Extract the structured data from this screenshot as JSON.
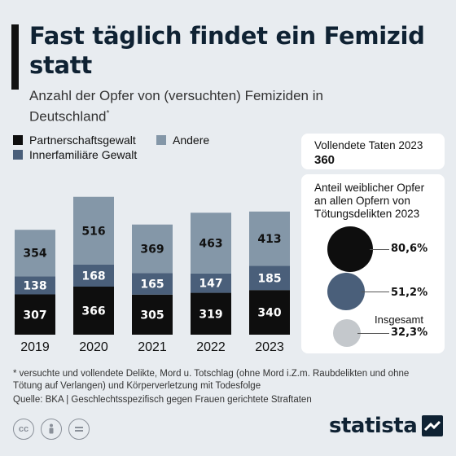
{
  "title": "Fast täglich findet ein Femizid statt",
  "subtitle": "Anzahl der Opfer von (versuchten) Femiziden in Deutschland",
  "subtitle_mark": "*",
  "colors": {
    "partnerschaft": "#0e0e0e",
    "innerfamiliaer": "#4a5f7a",
    "andere": "#8497a8",
    "background": "#e8ecf0",
    "panel": "#ffffff",
    "dot_insgesamt": "#c4c8cc"
  },
  "chart_data": {
    "type": "bar",
    "stacked": true,
    "categories": [
      "2019",
      "2020",
      "2021",
      "2022",
      "2023"
    ],
    "series": [
      {
        "name": "Partnerschaftsgewalt",
        "values": [
          307,
          366,
          305,
          319,
          340
        ]
      },
      {
        "name": "Innerfamiliäre Gewalt",
        "values": [
          138,
          168,
          165,
          147,
          185
        ]
      },
      {
        "name": "Andere",
        "values": [
          354,
          516,
          369,
          463,
          413
        ]
      }
    ],
    "legend_position": "top-left",
    "grid": false
  },
  "legend": {
    "partnerschaft": "Partnerschaftsgewalt",
    "andere": "Andere",
    "innerfamiliaer": "Innerfamiliäre Gewalt"
  },
  "panel_vollendet": {
    "label": "Vollendete Taten 2023",
    "value": "360"
  },
  "panel_anteil": {
    "heading": "Anteil weiblicher Opfer an allen Opfern von Tötungsdelikten 2023",
    "items": [
      {
        "value": "80,6%",
        "share": 0.806
      },
      {
        "value": "51,2%",
        "share": 0.512
      },
      {
        "value": "32,3%",
        "share": 0.323
      }
    ],
    "insgesamt_label": "Insgesamt"
  },
  "footnote": "* versuchte und vollendete Delikte, Mord u. Totschlag (ohne Mord i.Z.m. Raubdelikten und ohne Tötung auf Verlangen) und Körperverletzung mit Todesfolge",
  "source": "Quelle: BKA | Geschlechtsspezifisch gegen Frauen gerichtete Straftaten",
  "logo": "statista",
  "icons": [
    "cc-icon",
    "by-icon",
    "nd-icon"
  ]
}
